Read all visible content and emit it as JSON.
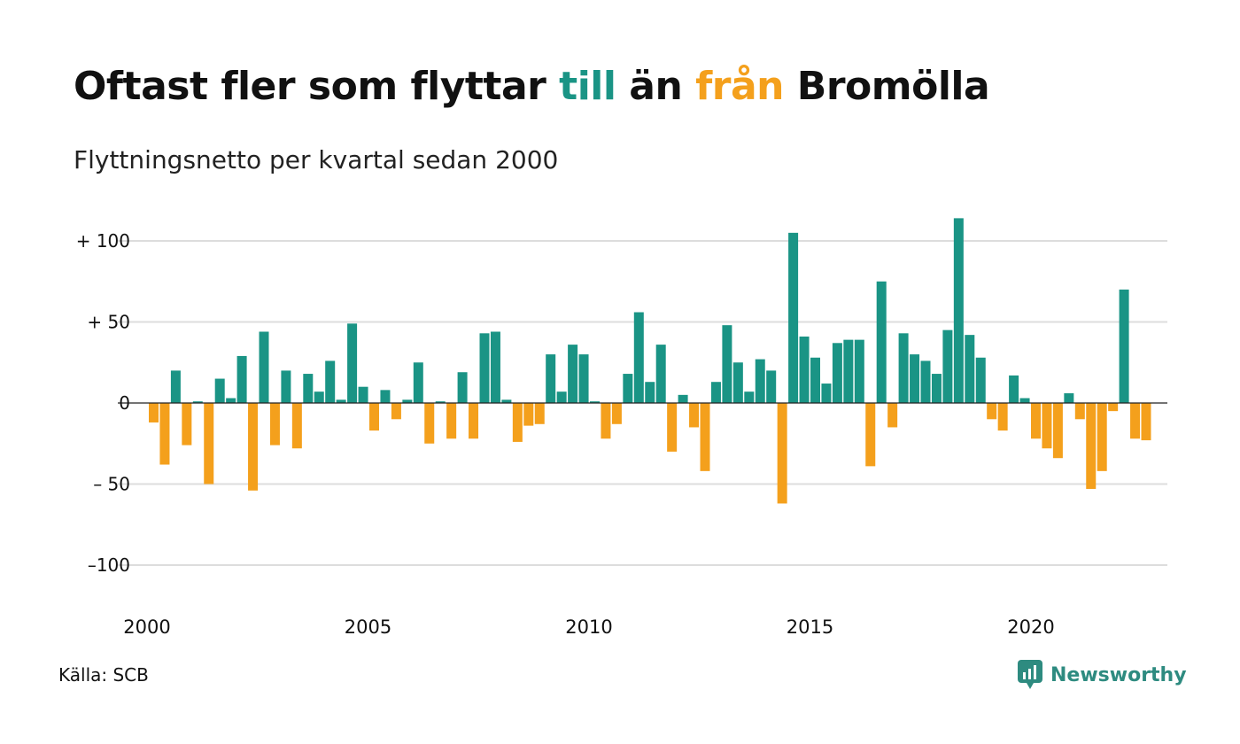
{
  "header": {
    "title_pre": "Oftast fler som flyttar ",
    "title_in": "till",
    "title_mid": " än ",
    "title_out": "från",
    "title_post": " Bromölla",
    "subtitle": "Flyttningsnetto per kvartal sedan 2000"
  },
  "footer": {
    "source": "Källa: SCB",
    "brand": "Newsworthy"
  },
  "colors": {
    "positive": "#1a9485",
    "negative": "#f4a01c",
    "grid": "#dddddd",
    "brand": "#2e8b80"
  },
  "chart_data": {
    "type": "bar",
    "title": "Oftast fler som flyttar till än från Bromölla",
    "subtitle": "Flyttningsnetto per kvartal sedan 2000",
    "x_start": "2000 Q1",
    "x_labels": [
      "2000",
      "2005",
      "2010",
      "2015",
      "2020"
    ],
    "y_ticks": [
      {
        "value": 100,
        "label": "+ 100"
      },
      {
        "value": 50,
        "label": "+  50"
      },
      {
        "value": 0,
        "label": "0"
      },
      {
        "value": -50,
        "label": "– 50"
      },
      {
        "value": -100,
        "label": "–100"
      }
    ],
    "ylim": [
      -100,
      100
    ],
    "grid": true,
    "values": [
      -12,
      -38,
      20,
      -26,
      1,
      -50,
      15,
      3,
      29,
      -54,
      44,
      -26,
      20,
      -28,
      18,
      7,
      26,
      2,
      49,
      10,
      -17,
      8,
      -10,
      2,
      25,
      -25,
      1,
      -22,
      19,
      -22,
      43,
      44,
      2,
      -24,
      -14,
      -13,
      30,
      7,
      36,
      30,
      1,
      -22,
      -13,
      18,
      56,
      13,
      36,
      -30,
      5,
      -15,
      -42,
      13,
      48,
      25,
      7,
      27,
      20,
      -62,
      105,
      41,
      28,
      12,
      37,
      39,
      39,
      -39,
      75,
      -15,
      43,
      30,
      26,
      18,
      45,
      114,
      42,
      28,
      -10,
      -17,
      17,
      3,
      -22,
      -28,
      -34,
      6,
      -10,
      -53,
      -42,
      -5,
      70,
      -22,
      -23
    ]
  }
}
